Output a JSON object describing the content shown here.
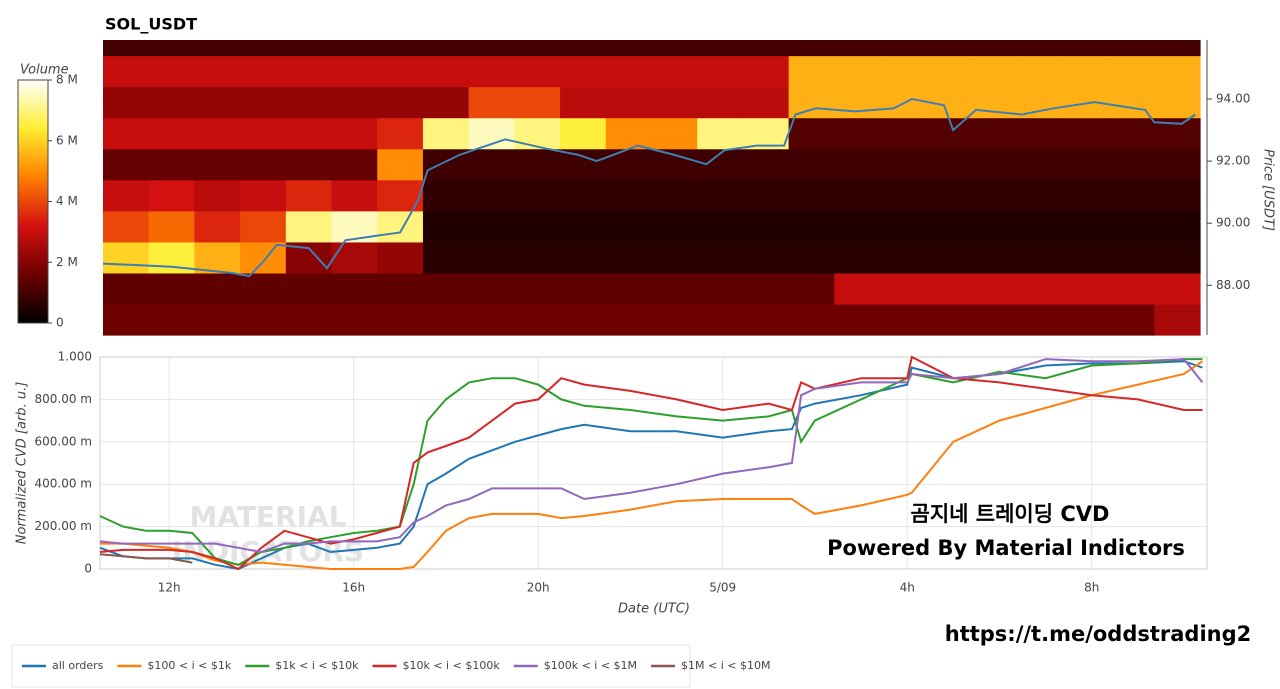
{
  "chart_data": [
    {
      "type": "heatmap",
      "title": "SOL_USDT",
      "x_edges": [
        10.5,
        11.5,
        12.5,
        13.5,
        14.5,
        15.5,
        16.5,
        17.5,
        18.5,
        19.5,
        20.5,
        21.5,
        22.5,
        23.5,
        24.5,
        25.5,
        26.5,
        27.5,
        28.5,
        29.5,
        30.5,
        31.5,
        32.5,
        33.5,
        34.5
      ],
      "y_edges": [
        86.4,
        87.4,
        88.4,
        89.4,
        90.4,
        91.4,
        92.4,
        93.4,
        94.4,
        95.4,
        95.9
      ],
      "z": [
        [
          1600000.0,
          1600000.0,
          1600000.0,
          1600000.0,
          1600000.0,
          1600000.0,
          1600000.0,
          1600000.0,
          1600000.0,
          1600000.0,
          1600000.0,
          1600000.0,
          1600000.0,
          1600000.0,
          1600000.0,
          1600000.0,
          1600000.0,
          1600000.0,
          1600000.0,
          1600000.0,
          1600000.0,
          1600000.0,
          1600000.0,
          2500000.0
        ],
        [
          1400000.0,
          1400000.0,
          1400000.0,
          1400000.0,
          1400000.0,
          1400000.0,
          1400000.0,
          1400000.0,
          1400000.0,
          1400000.0,
          1400000.0,
          1400000.0,
          1400000.0,
          1400000.0,
          1400000.0,
          1400000.0,
          3000000.0,
          3000000.0,
          3000000.0,
          3000000.0,
          3000000.0,
          3000000.0,
          3000000.0,
          3000000.0
        ],
        [
          6000000.0,
          6500000.0,
          5500000.0,
          5000000.0,
          2000000.0,
          2500000.0,
          2200000.0,
          600000.0,
          600000.0,
          600000.0,
          600000.0,
          600000.0,
          600000.0,
          600000.0,
          600000.0,
          600000.0,
          600000.0,
          600000.0,
          600000.0,
          600000.0,
          600000.0,
          600000.0,
          600000.0,
          600000.0
        ],
        [
          4000000.0,
          4500000.0,
          3500000.0,
          4000000.0,
          7000000.0,
          7500000.0,
          7000000.0,
          500000.0,
          500000.0,
          500000.0,
          500000.0,
          500000.0,
          500000.0,
          500000.0,
          500000.0,
          500000.0,
          500000.0,
          500000.0,
          500000.0,
          500000.0,
          500000.0,
          500000.0,
          500000.0,
          500000.0
        ],
        [
          3000000.0,
          3200000.0,
          2800000.0,
          3000000.0,
          3500000.0,
          3000000.0,
          3500000.0,
          700000.0,
          700000.0,
          700000.0,
          700000.0,
          700000.0,
          700000.0,
          700000.0,
          700000.0,
          700000.0,
          700000.0,
          700000.0,
          700000.0,
          700000.0,
          700000.0,
          700000.0,
          700000.0,
          700000.0
        ],
        [
          1500000.0,
          1500000.0,
          1500000.0,
          1500000.0,
          1500000.0,
          1500000.0,
          5000000.0,
          900000.0,
          900000.0,
          900000.0,
          900000.0,
          900000.0,
          900000.0,
          900000.0,
          900000.0,
          900000.0,
          900000.0,
          900000.0,
          900000.0,
          900000.0,
          900000.0,
          900000.0,
          900000.0,
          900000.0
        ],
        [
          3000000.0,
          3000000.0,
          3000000.0,
          3000000.0,
          3000000.0,
          3000000.0,
          3500000.0,
          7000000.0,
          7500000.0,
          7000000.0,
          6500000.0,
          5000000.0,
          5000000.0,
          7000000.0,
          7000000.0,
          1200000.0,
          1200000.0,
          1200000.0,
          1200000.0,
          1200000.0,
          1200000.0,
          1200000.0,
          1200000.0,
          1200000.0
        ],
        [
          2200000.0,
          2200000.0,
          2200000.0,
          2200000.0,
          2200000.0,
          2200000.0,
          2200000.0,
          2200000.0,
          4000000.0,
          4000000.0,
          2800000.0,
          2800000.0,
          2800000.0,
          2800000.0,
          2800000.0,
          5500000.0,
          5500000.0,
          5500000.0,
          5500000.0,
          5500000.0,
          5500000.0,
          5500000.0,
          5500000.0,
          5500000.0
        ],
        [
          3000000.0,
          3000000.0,
          3000000.0,
          3000000.0,
          3000000.0,
          3000000.0,
          3000000.0,
          3000000.0,
          3000000.0,
          3000000.0,
          3000000.0,
          3000000.0,
          3000000.0,
          3000000.0,
          3000000.0,
          5500000.0,
          5500000.0,
          5500000.0,
          5500000.0,
          5500000.0,
          5500000.0,
          5500000.0,
          5500000.0,
          5500000.0
        ],
        [
          1000000.0,
          1000000.0,
          1000000.0,
          1000000.0,
          1000000.0,
          1000000.0,
          1000000.0,
          1000000.0,
          1000000.0,
          1000000.0,
          1000000.0,
          1000000.0,
          1000000.0,
          1000000.0,
          1000000.0,
          1000000.0,
          1000000.0,
          1000000.0,
          1000000.0,
          1000000.0,
          1000000.0,
          1000000.0,
          1000000.0,
          1000000.0
        ]
      ],
      "clim": [
        0,
        8000000
      ],
      "colorbar_title": "Volume",
      "cticks": [
        0,
        {
          "value": 2000000,
          "label": "2 M"
        },
        {
          "value": 4000000,
          "label": "4 M"
        },
        {
          "value": 6000000,
          "label": "6 M"
        },
        {
          "value": 8000000,
          "label": "8 M"
        }
      ],
      "colorscale": [
        "#000000",
        "#6e0000",
        "#d41010",
        "#ff7f00",
        "#ffee30",
        "#ffffff"
      ],
      "xlim": [
        10.5,
        34.5
      ],
      "ylim": [
        86.4,
        95.9
      ],
      "yticks": [
        {
          "value": 88,
          "label": "88.00"
        },
        {
          "value": 90,
          "label": "90.00"
        },
        {
          "value": 92,
          "label": "92.00"
        },
        {
          "value": 94,
          "label": "94.00"
        }
      ],
      "ylabel": "Price [USDT]",
      "series": [
        {
          "color": "#3d7fb3",
          "x": [
            10.5,
            12,
            13.3,
            13.7,
            14,
            14.3,
            15,
            15.4,
            15.8,
            16.5,
            17,
            17.4,
            17.6,
            18.3,
            18.9,
            19.3,
            20.2,
            20.9,
            21.3,
            22.2,
            23,
            23.7,
            24.1,
            24.8,
            25.4,
            25.65,
            26.1,
            26.95,
            27.8,
            28.2,
            28.9,
            29.1,
            29.6,
            30.6,
            31.3,
            32.2,
            33.3,
            33.5,
            34.1,
            34.4
          ],
          "values": [
            88.7,
            88.6,
            88.4,
            88.3,
            88.75,
            89.3,
            89.2,
            88.55,
            89.45,
            89.6,
            89.7,
            90.75,
            91.7,
            92.2,
            92.5,
            92.7,
            92.4,
            92.2,
            92,
            92.5,
            92.2,
            91.9,
            92.35,
            92.5,
            92.5,
            93.5,
            93.7,
            93.6,
            93.7,
            94,
            93.8,
            93,
            93.65,
            93.5,
            93.7,
            93.9,
            93.65,
            93.25,
            93.2,
            93.5
          ]
        }
      ]
    },
    {
      "type": "line",
      "x": [
        10.5,
        11,
        11.5,
        12,
        12.5,
        13,
        13.5,
        14,
        14.5,
        15,
        15.5,
        16,
        16.5,
        17,
        17.3,
        17.6,
        18,
        18.5,
        19,
        19.5,
        20,
        20.5,
        21,
        22,
        23,
        24,
        25,
        25.5,
        25.7,
        26,
        27,
        28,
        28.1,
        29,
        30,
        31,
        32,
        33,
        34,
        34.4
      ],
      "xlim": [
        10.5,
        34.5
      ],
      "xticks": [
        {
          "value": 12,
          "label": "12h"
        },
        {
          "value": 16,
          "label": "16h"
        },
        {
          "value": 20,
          "label": "20h"
        },
        {
          "value": 24,
          "label": "5/09"
        },
        {
          "value": 28,
          "label": "4h"
        },
        {
          "value": 32,
          "label": "8h"
        }
      ],
      "ylim": [
        0,
        1
      ],
      "yticks": [
        0,
        {
          "value": 0.2,
          "label": "200.00 m"
        },
        {
          "value": 0.4,
          "label": "400.00 m"
        },
        {
          "value": 0.6,
          "label": "600.00 m"
        },
        {
          "value": 0.8,
          "label": "800.00 m"
        },
        {
          "value": 1,
          "label": "1.000"
        }
      ],
      "xlabel": "Date (UTC)",
      "ylabel": "Normalized CVD [arb. u.]",
      "grid": true,
      "legend": "bottom-left",
      "annotations": [
        "곰지네 트레이딩 CVD",
        "Powered By Material Indictors"
      ],
      "watermark": [
        "MATERIAL",
        "INDICATORS"
      ],
      "series": [
        {
          "name": "all orders",
          "color": "#1f77b4",
          "values": [
            0.1,
            0.06,
            0.05,
            0.05,
            0.05,
            0.02,
            0,
            0.05,
            0.1,
            0.12,
            0.08,
            0.09,
            0.1,
            0.12,
            0.2,
            0.4,
            0.45,
            0.52,
            0.56,
            0.6,
            0.63,
            0.66,
            0.68,
            0.65,
            0.65,
            0.62,
            0.65,
            0.66,
            0.76,
            0.78,
            0.82,
            0.87,
            0.95,
            0.9,
            0.92,
            0.96,
            0.97,
            0.97,
            0.98,
            0.95
          ]
        },
        {
          "name": "$100 < i < $1k",
          "color": "#ff7f0e",
          "values": [
            0.12,
            0.12,
            0.11,
            0.1,
            0.08,
            0.04,
            0.02,
            0.03,
            0.02,
            0.01,
            0,
            0,
            0,
            0,
            0.01,
            0.08,
            0.18,
            0.24,
            0.26,
            0.26,
            0.26,
            0.24,
            0.25,
            0.28,
            0.32,
            0.33,
            0.33,
            0.33,
            0.3,
            0.26,
            0.3,
            0.35,
            0.36,
            0.6,
            0.7,
            0.76,
            0.82,
            0.87,
            0.92,
            0.98
          ]
        },
        {
          "name": "$1k < i < $10k",
          "color": "#2ca02c",
          "values": [
            0.25,
            0.2,
            0.18,
            0.18,
            0.17,
            0.05,
            0.02,
            0.08,
            0.1,
            0.13,
            0.15,
            0.17,
            0.18,
            0.2,
            0.4,
            0.7,
            0.8,
            0.88,
            0.9,
            0.9,
            0.87,
            0.8,
            0.77,
            0.75,
            0.72,
            0.7,
            0.72,
            0.75,
            0.6,
            0.7,
            0.8,
            0.9,
            0.92,
            0.88,
            0.93,
            0.9,
            0.96,
            0.97,
            0.99,
            0.99
          ]
        },
        {
          "name": "$10k < i < $100k",
          "color": "#d62728",
          "values": [
            0.08,
            0.09,
            0.09,
            0.09,
            0.08,
            0.05,
            0,
            0.1,
            0.18,
            0.15,
            0.12,
            0.14,
            0.17,
            0.2,
            0.5,
            0.55,
            0.58,
            0.62,
            0.7,
            0.78,
            0.8,
            0.9,
            0.87,
            0.84,
            0.8,
            0.75,
            0.78,
            0.75,
            0.88,
            0.85,
            0.9,
            0.9,
            1,
            0.9,
            0.88,
            0.85,
            0.82,
            0.8,
            0.75,
            0.75
          ]
        },
        {
          "name": "$100k < i < $1M",
          "color": "#9467bd",
          "values": [
            0.13,
            0.12,
            0.12,
            0.12,
            0.12,
            0.12,
            0.1,
            0.08,
            0.12,
            0.12,
            0.13,
            0.13,
            0.13,
            0.15,
            0.22,
            0.25,
            0.3,
            0.33,
            0.38,
            0.38,
            0.38,
            0.38,
            0.33,
            0.36,
            0.4,
            0.45,
            0.48,
            0.5,
            0.82,
            0.85,
            0.88,
            0.88,
            0.92,
            0.9,
            0.92,
            0.99,
            0.98,
            0.98,
            0.99,
            0.88
          ]
        },
        {
          "name": "$1M < i < $10M",
          "color": "#8c564b",
          "values": [
            0.07,
            0.06,
            0.05,
            0.05,
            0.03,
            null,
            null,
            null,
            null,
            null,
            null,
            null,
            null,
            null,
            null,
            null,
            null,
            null,
            null,
            null,
            null,
            null,
            null,
            null,
            null,
            null,
            null,
            null,
            null,
            null,
            null,
            null,
            null,
            null,
            null,
            null,
            null,
            null,
            null,
            null
          ]
        }
      ]
    }
  ],
  "footer_link": "https://t.me/oddstrading2"
}
